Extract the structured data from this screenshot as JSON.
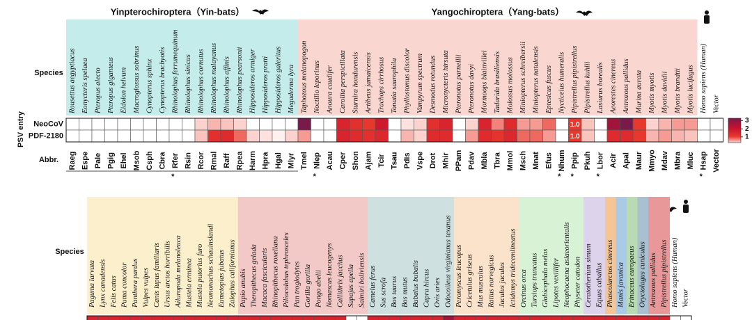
{
  "chart_data": [
    {
      "type": "heatmap",
      "species_label": "Species",
      "abbr_label": "Abbr.",
      "row_axis_label": "PSV entry",
      "rows": [
        "NeoCoV",
        "PDF-2180"
      ],
      "groups": [
        {
          "name": "Yinpterochiroptera（Yin-bats）",
          "color": "#c3ecea",
          "species": [
            "Rousettus aegyptiacus",
            "Eonycteris spelaea",
            "Pteropus alecto",
            "Pteropus giganteus",
            "Eidolon helvum",
            "Macroglossus sobrinus",
            "Cynopterus sphinx",
            "Cynopterus brachyotis",
            "Rhinolophus ferrumequinum",
            "Rhinolophus sinicus",
            "Rhinolophus cornutus",
            "Rhinolophus malayanus",
            "Rhinolophus affinis",
            "Rhinolophus pearsonii",
            "Hipposideros armiger",
            "Hipposideros pratti",
            "Hipposideros galeritus",
            "Megaderma lyra"
          ],
          "abbr": [
            "Raeg",
            "Espe",
            "Pale",
            "Pgig",
            "Ehel",
            "Msob",
            "Csph",
            "Cbra",
            "Rfer",
            "Rsin",
            "Rcor",
            "Rmal",
            "Raff",
            "Rpea",
            "Harm",
            "Hpra",
            "Hgal",
            "Mlyr"
          ]
        },
        {
          "name": "Yangochiroptera（Yang-bats）",
          "color": "#f9d6cf",
          "species": [
            "Taphozous melanopogon",
            "Noctilio leporinus",
            "Anoura caudifer",
            "Carollia perspicillata",
            "Sturnira hondurensis",
            "Artibeus jamaicensis",
            "Trachops cirrhosus",
            "Tonatia saurophila",
            "Phyllostomus discolor",
            "Vampyrum spectrum",
            "Desmodus rotundus",
            "Micronycteris hirsuta",
            "Pteronotus parnellii",
            "Pteronotus davyi",
            "Mormoops blainvillei",
            "Tadarida brasiliensis",
            "Molossus molossus",
            "Miniopterus schreibersii",
            "Miniopterus natalensis",
            "Eptesicus fuscus",
            "Nycticeius humeralis",
            "Pipistrellus pipistrellus",
            "Pipistrellus kuhlii",
            "Lasiurus borealis",
            "Aeorestes cinereus",
            "Antrozous pallidus",
            "Murina aurata",
            "Myotis myotis",
            "Myotis davidii",
            "Myotis brandtii",
            "Myotis lucifugus"
          ],
          "abbr": [
            "Tmel",
            "Nlep",
            "Acau",
            "Cper",
            "Shon",
            "Ajam",
            "Tcir",
            "Tsau",
            "Pdis",
            "Vspe",
            "Drot",
            "Mhir",
            "PPam",
            "Pdav",
            "Mbla",
            "Tbra",
            "Mmol",
            "Msch",
            "Mnat",
            "Efus",
            "Nhum",
            "Ppip",
            "Pkuh",
            "Lbor",
            "Acir",
            "Apal",
            "Maur",
            "Mmyo",
            "Mdav",
            "Mbra",
            "Mluc"
          ]
        },
        {
          "species": [
            "Homo sapiens (Human)",
            "Vector"
          ],
          "abbr": [
            "Hsap",
            "Vector"
          ]
        }
      ],
      "notes": [
        null,
        null,
        null,
        null,
        null,
        null,
        null,
        null,
        "*",
        null,
        null,
        null,
        null,
        null,
        null,
        null,
        null,
        null,
        null,
        "*",
        null,
        null,
        null,
        null,
        null,
        null,
        null,
        null,
        null,
        null,
        null,
        null,
        null,
        null,
        null,
        null,
        null,
        null,
        "*",
        "*",
        null,
        "*",
        null,
        null,
        null,
        null,
        null,
        null,
        null,
        "*",
        null
      ],
      "values": [
        [
          0,
          0,
          0,
          0,
          0,
          0,
          0,
          0,
          0,
          0,
          0.3,
          0.5,
          0.4,
          0.3,
          0,
          0,
          0,
          0,
          3.0,
          0,
          0,
          1.5,
          1.2,
          1.0,
          1.8,
          0,
          0.2,
          0.3,
          1.2,
          1.5,
          0,
          0.3,
          1.5,
          0.7,
          1.3,
          0.6,
          0.6,
          0.8,
          0,
          1.0,
          0.4,
          0,
          2.5,
          3.0,
          1.0,
          0.3,
          0.5,
          0.6,
          0.6,
          0,
          0
        ],
        [
          0,
          0,
          0,
          0,
          0,
          0,
          0,
          0,
          0,
          0,
          0.4,
          1.2,
          1.3,
          0.8,
          0.3,
          0.2,
          0.1,
          0.3,
          0.6,
          0,
          0,
          1.5,
          1.3,
          1.2,
          1.4,
          0,
          0.5,
          0.3,
          1.3,
          1.3,
          0,
          0.6,
          1.3,
          1.1,
          1.4,
          0.8,
          0.8,
          0.6,
          0,
          1.0,
          0.4,
          0,
          1.3,
          1.3,
          1.0,
          0.5,
          0.6,
          0.5,
          0.4,
          0,
          0
        ]
      ],
      "value_labels": [
        [
          null,
          null,
          null,
          null,
          null,
          null,
          null,
          null,
          null,
          null,
          null,
          null,
          null,
          null,
          null,
          null,
          null,
          null,
          null,
          null,
          null,
          null,
          null,
          null,
          null,
          null,
          null,
          null,
          null,
          null,
          null,
          null,
          null,
          null,
          null,
          null,
          null,
          null,
          null,
          "1.0",
          null,
          null,
          null,
          null,
          null,
          null,
          null,
          null,
          null,
          null,
          null
        ],
        [
          null,
          null,
          null,
          null,
          null,
          null,
          null,
          null,
          null,
          null,
          null,
          null,
          null,
          null,
          null,
          null,
          null,
          null,
          null,
          null,
          null,
          null,
          null,
          null,
          null,
          null,
          null,
          null,
          null,
          null,
          null,
          null,
          null,
          null,
          null,
          null,
          null,
          null,
          null,
          "1.0",
          null,
          null,
          null,
          null,
          null,
          null,
          null,
          null,
          null,
          null,
          null
        ]
      ],
      "colorbar": {
        "lim": [
          0.3,
          3.3
        ],
        "ticks": [
          1,
          2,
          3
        ]
      }
    },
    {
      "type": "heatmap",
      "species_label": "Species",
      "groups": [
        {
          "color": "#fbefcc",
          "species": [
            "Paguma larvata",
            "Lynx canadensis",
            "Felis catus",
            "Puma concolor",
            "Panthera pardus",
            "Vulpes vulpes",
            "Canis lupus familiaris",
            "Ursus arctos horribilis",
            "Ailuropoda melanoleuca",
            "Mustela erminea",
            "Mustela putorius furo",
            "Neomonachus schauinslandi",
            "Eumetopias jubatus",
            "Zalophus californianus"
          ]
        },
        {
          "color": "#f3c9c7",
          "species": [
            "Papio anubis",
            "Theropithecus gelada",
            "Macaca fascicularis",
            "Rhinopithecus roxellana",
            "Piliocolobus tephrosceles",
            "Pan troglodytes",
            "Gorilla gorilla",
            "Pongo abelii",
            "Nomascus leucogenys",
            "Callithrix jacchus",
            "Sapajus apella",
            "Saimiri boliviensis"
          ]
        },
        {
          "color": "#cfe0e1",
          "species": [
            "Camelus ferus",
            "Sus scrofa",
            "Bos taurus",
            "Bos mutus",
            "Bubalus bubalis",
            "Capra hircus",
            "Ovis aries",
            "Odocoileus virginianus texanus"
          ]
        },
        {
          "color": "#fbe2cb",
          "species": [
            "Peromyscus leucopus",
            "Cricetulus griseus",
            "Mus musculus",
            "Rattus norvegicus",
            "Jaculus jaculus",
            "Ictidomys tridecemlineatus"
          ]
        },
        {
          "color": "#d8f2d6",
          "species": [
            "Orcinus orca",
            "Tursiops truncatus",
            "Globicephala melas",
            "Lipotes vexillifer",
            "Neophocaena asiaeorientalis",
            "Physeter catodon"
          ]
        },
        {
          "color": "#ddd3ea",
          "species": [
            "Ceratotherium simum",
            "Equus caballus"
          ]
        },
        {
          "color": "#f5c596",
          "species": [
            "Phascolarctos cinereus"
          ]
        },
        {
          "color": "#a9cbe8",
          "species": [
            "Manis javanica"
          ]
        },
        {
          "color": "#b8dbb4",
          "species": [
            "Erinaceus europaeus"
          ]
        },
        {
          "color": "#a9c0d0",
          "species": [
            "Oryctolagus cuniculus"
          ]
        },
        {
          "color": "#e89898",
          "species": [
            "Antrozous pallidus",
            "Pipistrellus pipistrellus"
          ]
        },
        {
          "species": [
            "Homo sapiens (Human)",
            "Vector"
          ]
        }
      ],
      "values": [
        [
          1.5,
          1.5,
          1.5,
          1.5,
          1.5,
          1.5,
          1.5,
          1.5,
          1.5,
          1.5,
          1.5,
          1.5,
          1.5,
          1.5,
          1.5,
          1.5,
          1.5,
          1.5,
          1.5,
          1.5,
          1.5,
          1.5,
          1.5,
          1.5,
          0,
          0,
          1.5,
          1.5,
          1.5,
          1.5,
          1.5,
          1.5,
          1.5,
          2.5,
          1.5,
          1.5,
          1.5,
          1.5,
          1.5,
          1.5,
          1.5,
          1.5,
          1.5,
          1.5,
          1.5,
          1.5,
          1.5,
          1.5,
          1.5,
          1.5,
          1.5,
          1.5,
          1.5,
          1.5,
          0,
          0
        ]
      ]
    }
  ]
}
